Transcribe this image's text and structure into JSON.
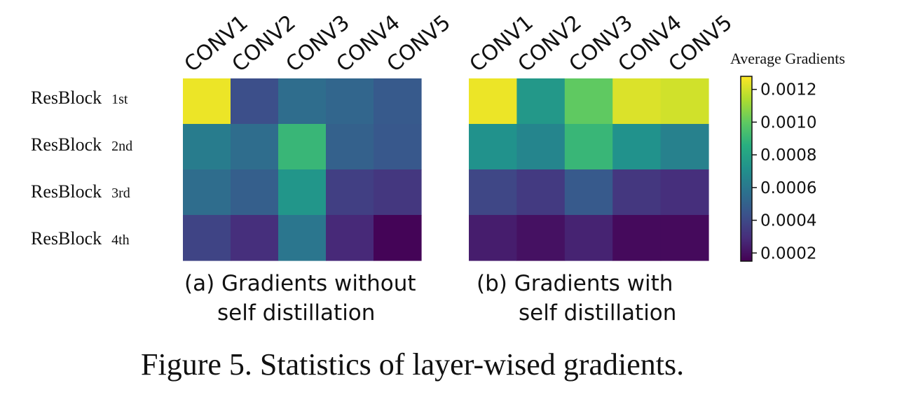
{
  "chart_data": {
    "type": "heatmap",
    "title": "",
    "colorbar": {
      "label": "Average Gradients",
      "range": [
        0.00015,
        0.00128
      ],
      "ticks": [
        0.0002,
        0.0004,
        0.0006,
        0.0008,
        0.001,
        0.0012
      ],
      "tick_labels": [
        "0.0002",
        "0.0004",
        "0.0006",
        "0.0008",
        "0.0010",
        "0.0012"
      ],
      "colormap": "viridis"
    },
    "columns": [
      "CONV1",
      "CONV2",
      "CONV3",
      "CONV4",
      "CONV5"
    ],
    "rows": [
      {
        "name": "ResBlock",
        "ordinal": "1st"
      },
      {
        "name": "ResBlock",
        "ordinal": "2nd"
      },
      {
        "name": "ResBlock",
        "ordinal": "3rd"
      },
      {
        "name": "ResBlock",
        "ordinal": "4th"
      }
    ],
    "panels": [
      {
        "caption_line1": "(a) Gradients without",
        "caption_line2": "self distillation",
        "values": [
          [
            0.00125,
            0.00042,
            0.00055,
            0.00052,
            0.00047
          ],
          [
            0.00062,
            0.00055,
            0.0009,
            0.0005,
            0.00046
          ],
          [
            0.00055,
            0.00049,
            0.00074,
            0.00036,
            0.00033
          ],
          [
            0.00038,
            0.0003,
            0.00059,
            0.00028,
            0.00016
          ]
        ]
      },
      {
        "caption_line1": "(b) Gradients with",
        "caption_line2": "self distillation",
        "values": [
          [
            0.00125,
            0.00075,
            0.001,
            0.00122,
            0.0012
          ],
          [
            0.00072,
            0.00066,
            0.0009,
            0.00072,
            0.00064
          ],
          [
            0.00039,
            0.00034,
            0.00047,
            0.00033,
            0.0003
          ],
          [
            0.00024,
            0.0002,
            0.00026,
            0.00018,
            0.00018
          ]
        ]
      }
    ]
  },
  "figure_caption": "Figure 5. Statistics of layer-wised gradients."
}
